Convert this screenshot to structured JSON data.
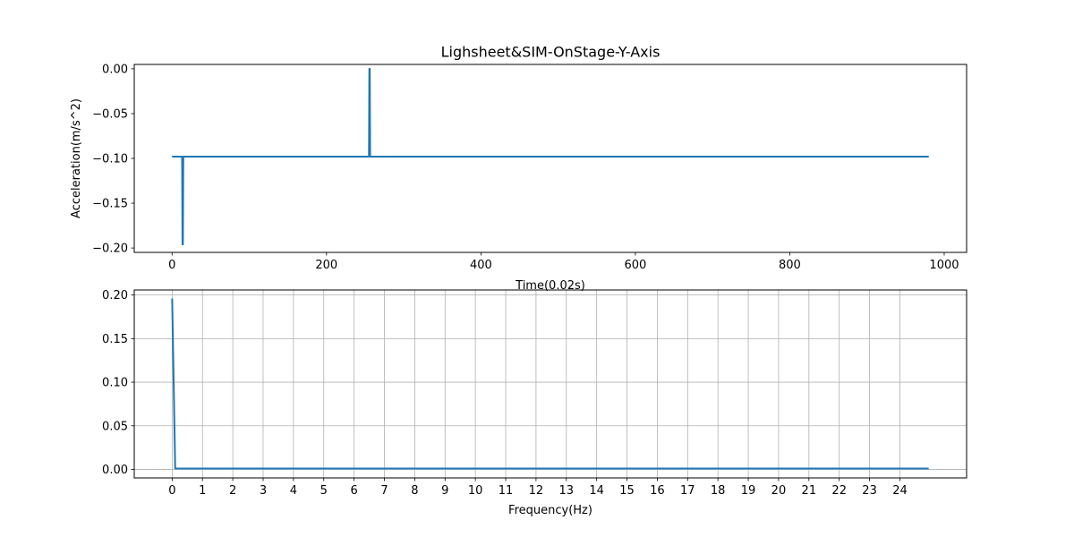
{
  "chart_data": [
    {
      "type": "line",
      "title": "Lighsheet&SIM-OnStage-Y-Axis",
      "xlabel": "Time(0.02s)",
      "ylabel": "Acceleration(m/s^2)",
      "xlim": [
        -49,
        1029
      ],
      "ylim": [
        -0.2049,
        0.0049
      ],
      "x_ticks": [
        0,
        200,
        400,
        600,
        800,
        1000
      ],
      "x_tick_labels": [
        "0",
        "200",
        "400",
        "600",
        "800",
        "1000"
      ],
      "y_ticks": [
        0.0,
        -0.05,
        -0.1,
        -0.15,
        -0.2
      ],
      "y_tick_labels": [
        "0.00",
        "−0.05",
        "−0.10",
        "−0.15",
        "−0.20"
      ],
      "grid": false,
      "series": [
        {
          "color": "#1f77b4",
          "x": [
            0,
            13,
            13.5,
            14,
            14.5,
            255,
            255.5,
            256,
            256.5,
            980
          ],
          "y": [
            -0.098,
            -0.098,
            -0.196,
            -0.196,
            -0.098,
            -0.098,
            0.0,
            0.0,
            -0.098,
            -0.098
          ]
        }
      ]
    },
    {
      "type": "line",
      "title": "",
      "xlabel": "Frequency(Hz)",
      "ylabel": "",
      "xlim": [
        -1.25,
        26.2
      ],
      "ylim": [
        -0.0098,
        0.2058
      ],
      "x_ticks": [
        0,
        1,
        2,
        3,
        4,
        5,
        6,
        7,
        8,
        9,
        10,
        11,
        12,
        13,
        14,
        15,
        16,
        17,
        18,
        19,
        20,
        21,
        22,
        23,
        24
      ],
      "x_tick_labels": [
        "0",
        "1",
        "2",
        "3",
        "4",
        "5",
        "6",
        "7",
        "8",
        "9",
        "10",
        "11",
        "12",
        "13",
        "14",
        "15",
        "16",
        "17",
        "18",
        "19",
        "20",
        "21",
        "22",
        "23",
        "24"
      ],
      "y_ticks": [
        0.0,
        0.05,
        0.1,
        0.15,
        0.2
      ],
      "y_tick_labels": [
        "0.00",
        "0.05",
        "0.10",
        "0.15",
        "0.20"
      ],
      "grid": true,
      "series": [
        {
          "color": "#1f77b4",
          "x": [
            0,
            0.05,
            0.1,
            24.95
          ],
          "y": [
            0.196,
            0.1,
            0.001,
            0.001
          ]
        }
      ]
    }
  ]
}
